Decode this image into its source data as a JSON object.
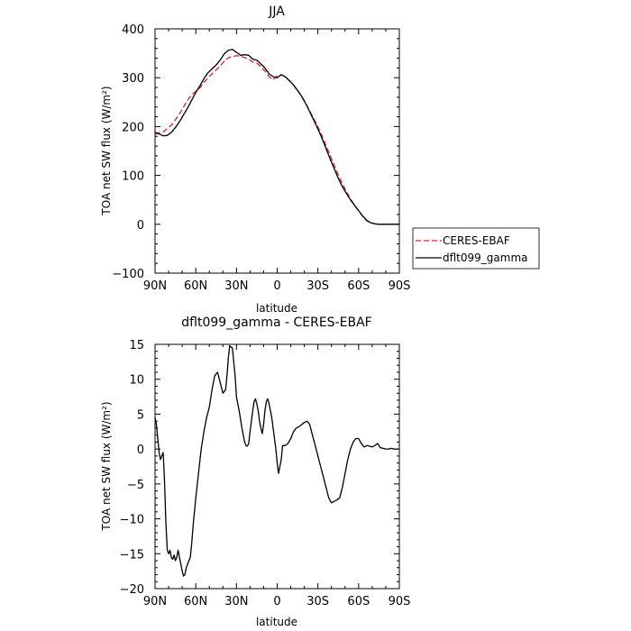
{
  "chart_data": [
    {
      "type": "line",
      "title": "JJA",
      "xlabel": "latitude",
      "ylabel": "TOA net SW flux (W/m²)",
      "x_ticks": [
        "90N",
        "60N",
        "30N",
        "0",
        "30S",
        "60S",
        "90S"
      ],
      "x_tick_values": [
        90,
        60,
        30,
        0,
        -30,
        -60,
        -90
      ],
      "xlim": [
        90,
        -90
      ],
      "ylim": [
        -100,
        400
      ],
      "y_ticks": [
        -100,
        0,
        100,
        200,
        300,
        400
      ],
      "legend_position": "right",
      "x": [
        90,
        87,
        84,
        81,
        78,
        75,
        72,
        69,
        66,
        63,
        60,
        57,
        54,
        51,
        48,
        45,
        42,
        39,
        36,
        33,
        30,
        27,
        24,
        21,
        18,
        15,
        12,
        9,
        6,
        3,
        0,
        -3,
        -6,
        -9,
        -12,
        -15,
        -18,
        -21,
        -24,
        -27,
        -30,
        -33,
        -36,
        -39,
        -42,
        -45,
        -48,
        -51,
        -54,
        -57,
        -60,
        -63,
        -66,
        -69,
        -72,
        -75,
        -78,
        -81,
        -84,
        -87,
        -90
      ],
      "series": [
        {
          "name": "CERES-EBAF",
          "color": "#e02020",
          "dash": "dashed",
          "values": [
            184,
            187,
            189,
            196,
            203,
            214,
            226,
            240,
            254,
            265,
            272,
            279,
            290,
            300,
            308,
            316,
            324,
            334,
            341,
            343,
            345,
            344,
            341,
            338,
            332,
            330,
            322,
            314,
            302,
            296,
            304,
            306,
            302,
            294,
            285,
            274,
            262,
            248,
            232,
            216,
            199,
            181,
            161,
            141,
            121,
            101,
            83,
            67,
            52,
            39,
            27,
            16,
            7,
            3,
            1,
            0,
            0,
            0,
            0,
            0,
            0
          ]
        },
        {
          "name": "dflt099_gamma",
          "color": "#000000",
          "dash": "solid",
          "values": [
            188,
            185,
            181,
            182,
            188,
            198,
            210,
            224,
            238,
            254,
            270,
            283,
            298,
            310,
            318,
            326,
            336,
            349,
            356,
            358,
            352,
            346,
            347,
            346,
            338,
            336,
            328,
            320,
            308,
            302,
            300,
            306,
            302,
            294,
            285,
            274,
            262,
            247,
            230,
            213,
            195,
            176,
            155,
            134,
            114,
            94,
            77,
            63,
            50,
            39,
            28,
            17,
            8,
            3,
            1,
            0,
            0,
            0,
            0,
            0,
            0
          ]
        }
      ]
    },
    {
      "type": "line",
      "title": "dflt099_gamma - CERES-EBAF",
      "xlabel": "latitude",
      "ylabel": "TOA net SW flux (W/m²)",
      "x_ticks": [
        "90N",
        "60N",
        "30N",
        "0",
        "30S",
        "60S",
        "90S"
      ],
      "x_tick_values": [
        90,
        60,
        30,
        0,
        -30,
        -60,
        -90
      ],
      "xlim": [
        90,
        -90
      ],
      "ylim": [
        -20,
        15
      ],
      "y_ticks": [
        -20,
        -15,
        -10,
        -5,
        0,
        5,
        10,
        15
      ],
      "series": [
        {
          "name": "dflt099_gamma - CERES-EBAF",
          "color": "#000000",
          "x": [
            90,
            89,
            88,
            87,
            86,
            85,
            84,
            83,
            82,
            81,
            80,
            79,
            78,
            77,
            76,
            75,
            74,
            73,
            72,
            71,
            70,
            69,
            68,
            67,
            66,
            65,
            64,
            63,
            62,
            61,
            60,
            58,
            56,
            54,
            52,
            50,
            48,
            46,
            44,
            42,
            40,
            38,
            37,
            36,
            35,
            34,
            33,
            32,
            31,
            30,
            28,
            26,
            24,
            23,
            22,
            21,
            20,
            19,
            18,
            17,
            16,
            15,
            14,
            13,
            12,
            11,
            10,
            9,
            8,
            7,
            6,
            5,
            4,
            3,
            2,
            1,
            0,
            -1,
            -2,
            -3,
            -4,
            -6,
            -8,
            -10,
            -12,
            -14,
            -16,
            -18,
            -20,
            -22,
            -24,
            -26,
            -28,
            -30,
            -32,
            -34,
            -36,
            -38,
            -40,
            -42,
            -44,
            -46,
            -48,
            -50,
            -52,
            -54,
            -56,
            -58,
            -60,
            -62,
            -64,
            -66,
            -68,
            -70,
            -72,
            -74,
            -76,
            -78,
            -80,
            -82,
            -84,
            -86,
            -88,
            -90
          ],
          "values": [
            4.5,
            3.5,
            1.5,
            -0.5,
            -1.5,
            -1.0,
            -0.5,
            -4.5,
            -10.5,
            -14.5,
            -15.0,
            -14.5,
            -15.5,
            -15.8,
            -15.2,
            -16.0,
            -15.5,
            -14.5,
            -15.5,
            -16.5,
            -17.5,
            -18.2,
            -18.0,
            -17.0,
            -16.5,
            -16.0,
            -15.5,
            -13.5,
            -11.0,
            -9.0,
            -7.0,
            -3.5,
            0.0,
            2.5,
            4.5,
            6.0,
            8.5,
            10.5,
            11.0,
            9.5,
            8.0,
            8.5,
            10.5,
            13.0,
            14.8,
            14.6,
            14.5,
            12.5,
            10.5,
            7.5,
            5.5,
            3.0,
            1.0,
            0.5,
            0.4,
            0.8,
            2.5,
            4.0,
            5.5,
            6.8,
            7.2,
            6.5,
            5.5,
            4.0,
            3.0,
            2.2,
            3.5,
            5.5,
            6.8,
            7.2,
            6.5,
            5.5,
            4.5,
            3.0,
            1.5,
            0.0,
            -2.0,
            -3.5,
            -2.5,
            -1.5,
            0.5,
            0.5,
            0.8,
            1.5,
            2.5,
            3.0,
            3.2,
            3.5,
            3.8,
            4.0,
            3.5,
            2.0,
            0.5,
            -1.0,
            -2.5,
            -4.0,
            -5.5,
            -7.0,
            -7.7,
            -7.5,
            -7.3,
            -7.0,
            -5.5,
            -3.5,
            -1.5,
            0.0,
            1.0,
            1.5,
            1.5,
            0.8,
            0.3,
            0.5,
            0.4,
            0.3,
            0.5,
            0.8,
            0.2,
            0.1,
            0.0,
            0.0,
            0.1,
            0.0,
            0.0,
            0.0
          ]
        }
      ]
    }
  ]
}
